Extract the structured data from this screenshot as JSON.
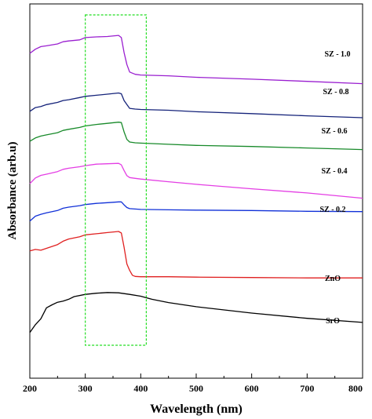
{
  "chart_data": {
    "type": "line",
    "xlabel": "Wavelength (nm)",
    "ylabel": "Absorbance (arb.u)",
    "xlim": [
      200,
      800
    ],
    "ylim": [
      0,
      100
    ],
    "x_ticks": [
      200,
      300,
      400,
      500,
      600,
      700,
      800
    ],
    "y_ticks_shown": false,
    "highlight_region": {
      "x_range": [
        300,
        410
      ],
      "style": "dashed",
      "color": "#22dd22"
    },
    "series": [
      {
        "name": "SZ - 1.0",
        "color": "#9a1fd0",
        "points": [
          [
            200,
            86.8
          ],
          [
            210,
            87.9
          ],
          [
            220,
            88.6
          ],
          [
            230,
            88.8
          ],
          [
            250,
            89.3
          ],
          [
            260,
            89.9
          ],
          [
            270,
            90.1
          ],
          [
            290,
            90.4
          ],
          [
            300,
            91.0
          ],
          [
            320,
            91.2
          ],
          [
            340,
            91.3
          ],
          [
            360,
            91.6
          ],
          [
            365,
            91.0
          ],
          [
            370,
            87.0
          ],
          [
            375,
            83.8
          ],
          [
            380,
            81.8
          ],
          [
            390,
            81.2
          ],
          [
            400,
            81.0
          ],
          [
            450,
            80.8
          ],
          [
            500,
            80.4
          ],
          [
            600,
            79.9
          ],
          [
            700,
            79.3
          ],
          [
            800,
            78.7
          ]
        ]
      },
      {
        "name": "SZ - 0.8",
        "color": "#15237a",
        "points": [
          [
            200,
            71.3
          ],
          [
            210,
            72.3
          ],
          [
            220,
            72.6
          ],
          [
            230,
            73.1
          ],
          [
            250,
            73.7
          ],
          [
            260,
            74.2
          ],
          [
            270,
            74.4
          ],
          [
            290,
            75.0
          ],
          [
            300,
            75.3
          ],
          [
            320,
            75.6
          ],
          [
            340,
            75.9
          ],
          [
            360,
            76.2
          ],
          [
            365,
            76.0
          ],
          [
            370,
            74.2
          ],
          [
            375,
            73.1
          ],
          [
            380,
            72.1
          ],
          [
            390,
            71.9
          ],
          [
            400,
            71.8
          ],
          [
            450,
            71.6
          ],
          [
            500,
            71.2
          ],
          [
            600,
            70.7
          ],
          [
            700,
            70.1
          ],
          [
            800,
            69.6
          ]
        ]
      },
      {
        "name": "SZ - 0.6",
        "color": "#188a2a",
        "points": [
          [
            200,
            63.3
          ],
          [
            210,
            64.2
          ],
          [
            220,
            64.7
          ],
          [
            230,
            65.0
          ],
          [
            250,
            65.6
          ],
          [
            260,
            66.2
          ],
          [
            270,
            66.5
          ],
          [
            290,
            67.0
          ],
          [
            300,
            67.4
          ],
          [
            320,
            67.8
          ],
          [
            340,
            68.1
          ],
          [
            360,
            68.4
          ],
          [
            365,
            68.3
          ],
          [
            370,
            65.8
          ],
          [
            375,
            63.8
          ],
          [
            380,
            63.1
          ],
          [
            390,
            62.9
          ],
          [
            400,
            62.8
          ],
          [
            450,
            62.5
          ],
          [
            500,
            62.2
          ],
          [
            600,
            61.9
          ],
          [
            700,
            61.5
          ],
          [
            800,
            61.1
          ]
        ]
      },
      {
        "name": "SZ - 0.4",
        "color": "#e43ee4",
        "points": [
          [
            200,
            52.0
          ],
          [
            210,
            53.5
          ],
          [
            220,
            54.2
          ],
          [
            230,
            54.5
          ],
          [
            250,
            55.2
          ],
          [
            260,
            55.8
          ],
          [
            270,
            56.1
          ],
          [
            290,
            56.5
          ],
          [
            300,
            56.8
          ],
          [
            320,
            57.2
          ],
          [
            340,
            57.3
          ],
          [
            360,
            57.4
          ],
          [
            365,
            57.0
          ],
          [
            370,
            55.5
          ],
          [
            375,
            54.1
          ],
          [
            380,
            53.6
          ],
          [
            390,
            53.4
          ],
          [
            400,
            53.2
          ],
          [
            450,
            52.5
          ],
          [
            500,
            51.8
          ],
          [
            600,
            50.6
          ],
          [
            700,
            49.5
          ],
          [
            800,
            48.1
          ]
        ]
      },
      {
        "name": "SZ - 0.2",
        "color": "#1030d8",
        "points": [
          [
            200,
            42.0
          ],
          [
            210,
            43.3
          ],
          [
            220,
            43.8
          ],
          [
            230,
            44.2
          ],
          [
            250,
            44.8
          ],
          [
            260,
            45.4
          ],
          [
            270,
            45.7
          ],
          [
            290,
            46.1
          ],
          [
            300,
            46.4
          ],
          [
            320,
            46.7
          ],
          [
            340,
            46.9
          ],
          [
            360,
            47.1
          ],
          [
            365,
            47.1
          ],
          [
            370,
            46.3
          ],
          [
            375,
            45.6
          ],
          [
            380,
            45.3
          ],
          [
            390,
            45.2
          ],
          [
            400,
            45.1
          ],
          [
            450,
            45.0
          ],
          [
            500,
            44.9
          ],
          [
            600,
            44.8
          ],
          [
            700,
            44.6
          ],
          [
            800,
            44.5
          ]
        ]
      },
      {
        "name": "ZnO",
        "color": "#e02020",
        "points": [
          [
            200,
            34.0
          ],
          [
            210,
            34.4
          ],
          [
            220,
            34.2
          ],
          [
            230,
            34.7
          ],
          [
            250,
            35.7
          ],
          [
            260,
            36.6
          ],
          [
            270,
            37.2
          ],
          [
            290,
            37.8
          ],
          [
            300,
            38.3
          ],
          [
            320,
            38.6
          ],
          [
            340,
            38.9
          ],
          [
            360,
            39.2
          ],
          [
            365,
            38.8
          ],
          [
            370,
            35.0
          ],
          [
            375,
            30.5
          ],
          [
            380,
            28.8
          ],
          [
            385,
            27.5
          ],
          [
            390,
            27.2
          ],
          [
            400,
            27.1
          ],
          [
            450,
            27.1
          ],
          [
            500,
            27.0
          ],
          [
            600,
            26.9
          ],
          [
            700,
            26.8
          ],
          [
            800,
            26.8
          ]
        ]
      },
      {
        "name": "SrO",
        "color": "#000000",
        "points": [
          [
            200,
            12.2
          ],
          [
            210,
            14.3
          ],
          [
            220,
            15.9
          ],
          [
            230,
            18.8
          ],
          [
            240,
            19.6
          ],
          [
            250,
            20.3
          ],
          [
            260,
            20.6
          ],
          [
            270,
            21.1
          ],
          [
            280,
            21.8
          ],
          [
            300,
            22.4
          ],
          [
            320,
            22.7
          ],
          [
            340,
            22.9
          ],
          [
            360,
            22.8
          ],
          [
            380,
            22.4
          ],
          [
            400,
            21.9
          ],
          [
            420,
            21.1
          ],
          [
            450,
            20.2
          ],
          [
            500,
            19.1
          ],
          [
            600,
            17.4
          ],
          [
            700,
            16.0
          ],
          [
            800,
            14.9
          ]
        ]
      }
    ]
  }
}
